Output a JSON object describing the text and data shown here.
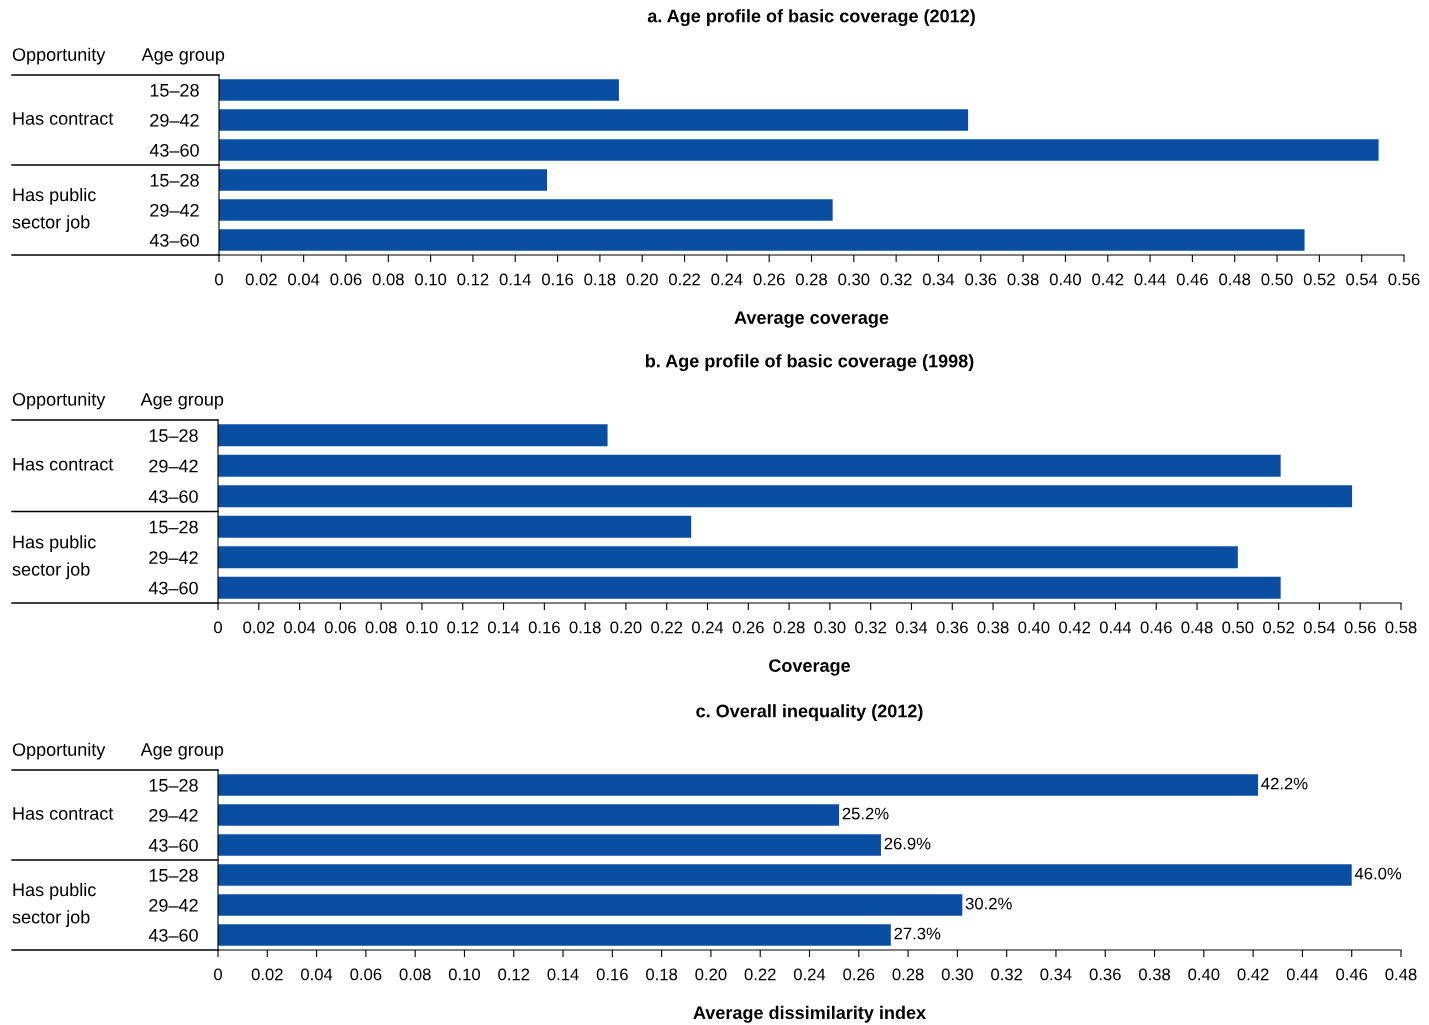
{
  "chart_data": [
    {
      "type": "bar",
      "orientation": "horizontal",
      "title": "a. Age profile of basic coverage (2012)",
      "xlabel": "Average coverage",
      "categories": [
        "15–28",
        "29–42",
        "43–60",
        "15–28",
        "29–42",
        "43–60"
      ],
      "values": [
        0.189,
        0.354,
        0.548,
        0.155,
        0.29,
        0.513
      ],
      "color": "#0a4ea2",
      "annotations": [
        "Opportunity",
        "Age group",
        "Has contract",
        "Has public\nsector job"
      ],
      "xlim": [
        0,
        0.56
      ],
      "xticks": [
        0,
        {
          "value": 0.02,
          "label": "0.02"
        },
        {
          "value": 0.04,
          "label": "0.04"
        },
        {
          "value": 0.06,
          "label": "0.06"
        },
        {
          "value": 0.08,
          "label": "0.08"
        },
        {
          "value": 0.1,
          "label": "0.10"
        },
        {
          "value": 0.12,
          "label": "0.12"
        },
        {
          "value": 0.14,
          "label": "0.14"
        },
        {
          "value": 0.16,
          "label": "0.16"
        },
        {
          "value": 0.18,
          "label": "0.18"
        },
        {
          "value": 0.2,
          "label": "0.20"
        },
        {
          "value": 0.22,
          "label": "0.22"
        },
        {
          "value": 0.24,
          "label": "0.24"
        },
        {
          "value": 0.26,
          "label": "0.26"
        },
        {
          "value": 0.28,
          "label": "0.28"
        },
        {
          "value": 0.3,
          "label": "0.30"
        },
        {
          "value": 0.32,
          "label": "0.32"
        },
        {
          "value": 0.34,
          "label": "0.34"
        },
        {
          "value": 0.36,
          "label": "0.36"
        },
        {
          "value": 0.38,
          "label": "0.38"
        },
        {
          "value": 0.4,
          "label": "0.40"
        },
        {
          "value": 0.42,
          "label": "0.42"
        },
        {
          "value": 0.44,
          "label": "0.44"
        },
        {
          "value": 0.46,
          "label": "0.46"
        },
        {
          "value": 0.48,
          "label": "0.48"
        },
        {
          "value": 0.5,
          "label": "0.50"
        },
        {
          "value": 0.52,
          "label": "0.52"
        },
        {
          "value": 0.54,
          "label": "0.54"
        },
        {
          "value": 0.56,
          "label": "0.56"
        }
      ],
      "grid": false,
      "legend": false
    },
    {
      "type": "bar",
      "orientation": "horizontal",
      "title": "b. Age profile of basic coverage (1998)",
      "xlabel": "Coverage",
      "categories": [
        "15–28",
        "29–42",
        "43–60",
        "15–28",
        "29–42",
        "43–60"
      ],
      "values": [
        0.191,
        0.521,
        0.556,
        0.232,
        0.5,
        0.521
      ],
      "color": "#0a4ea2",
      "annotations": [
        "Opportunity",
        "Age group",
        "Has contract",
        "Has public\nsector job"
      ],
      "xlim": [
        0,
        0.58
      ],
      "xticks": [
        0,
        {
          "value": 0.02,
          "label": "0.02"
        },
        {
          "value": 0.04,
          "label": "0.04"
        },
        {
          "value": 0.06,
          "label": "0.06"
        },
        {
          "value": 0.08,
          "label": "0.08"
        },
        {
          "value": 0.1,
          "label": "0.10"
        },
        {
          "value": 0.12,
          "label": "0.12"
        },
        {
          "value": 0.14,
          "label": "0.14"
        },
        {
          "value": 0.16,
          "label": "0.16"
        },
        {
          "value": 0.18,
          "label": "0.18"
        },
        {
          "value": 0.2,
          "label": "0.20"
        },
        {
          "value": 0.22,
          "label": "0.22"
        },
        {
          "value": 0.24,
          "label": "0.24"
        },
        {
          "value": 0.26,
          "label": "0.26"
        },
        {
          "value": 0.28,
          "label": "0.28"
        },
        {
          "value": 0.3,
          "label": "0.30"
        },
        {
          "value": 0.32,
          "label": "0.32"
        },
        {
          "value": 0.34,
          "label": "0.34"
        },
        {
          "value": 0.36,
          "label": "0.36"
        },
        {
          "value": 0.38,
          "label": "0.38"
        },
        {
          "value": 0.4,
          "label": "0.40"
        },
        {
          "value": 0.42,
          "label": "0.42"
        },
        {
          "value": 0.44,
          "label": "0.44"
        },
        {
          "value": 0.46,
          "label": "0.46"
        },
        {
          "value": 0.48,
          "label": "0.48"
        },
        {
          "value": 0.5,
          "label": "0.50"
        },
        {
          "value": 0.52,
          "label": "0.52"
        },
        {
          "value": 0.54,
          "label": "0.54"
        },
        {
          "value": 0.56,
          "label": "0.56"
        },
        {
          "value": 0.58,
          "label": "0.58"
        }
      ],
      "grid": false,
      "legend": false
    },
    {
      "type": "bar",
      "orientation": "horizontal",
      "title": "c. Overall inequality (2012)",
      "xlabel": "Average dissimilarity index",
      "categories": [
        "15–28",
        "29–42",
        "43–60",
        "15–28",
        "29–42",
        "43–60"
      ],
      "values": [
        0.422,
        0.252,
        0.269,
        0.46,
        0.302,
        0.273
      ],
      "color": "#0a4ea2",
      "value_labels": [
        "42.2%",
        "25.2%",
        "26.9%",
        "46.0%",
        "30.2%",
        "27.3%"
      ],
      "annotations": [
        "Opportunity",
        "Age group",
        "Has contract",
        "Has public\nsector job"
      ],
      "xlim": [
        0,
        0.48
      ],
      "xticks": [
        0,
        {
          "value": 0.02,
          "label": "0.02"
        },
        {
          "value": 0.04,
          "label": "0.04"
        },
        {
          "value": 0.06,
          "label": "0.06"
        },
        {
          "value": 0.08,
          "label": "0.08"
        },
        {
          "value": 0.1,
          "label": "0.10"
        },
        {
          "value": 0.12,
          "label": "0.12"
        },
        {
          "value": 0.14,
          "label": "0.14"
        },
        {
          "value": 0.16,
          "label": "0.16"
        },
        {
          "value": 0.18,
          "label": "0.18"
        },
        {
          "value": 0.2,
          "label": "0.20"
        },
        {
          "value": 0.22,
          "label": "0.22"
        },
        {
          "value": 0.24,
          "label": "0.24"
        },
        {
          "value": 0.26,
          "label": "0.26"
        },
        {
          "value": 0.28,
          "label": "0.28"
        },
        {
          "value": 0.3,
          "label": "0.30"
        },
        {
          "value": 0.32,
          "label": "0.32"
        },
        {
          "value": 0.34,
          "label": "0.34"
        },
        {
          "value": 0.36,
          "label": "0.36"
        },
        {
          "value": 0.38,
          "label": "0.38"
        },
        {
          "value": 0.4,
          "label": "0.40"
        },
        {
          "value": 0.42,
          "label": "0.42"
        },
        {
          "value": 0.44,
          "label": "0.44"
        },
        {
          "value": 0.46,
          "label": "0.46"
        },
        {
          "value": 0.48,
          "label": "0.48"
        }
      ],
      "grid": false,
      "legend": false
    }
  ]
}
